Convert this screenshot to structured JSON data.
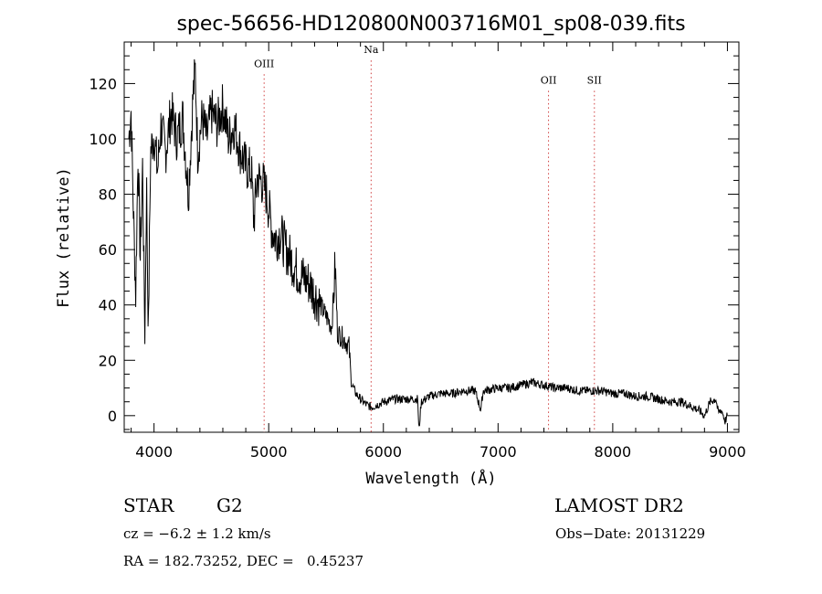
{
  "chart_data": {
    "type": "line",
    "title": "spec-56656-HD120800N003716M01_sp08-039.fits",
    "xlabel": "Wavelength (Å)",
    "ylabel": "Flux (relative)",
    "xlim": [
      3740,
      9100
    ],
    "ylim": [
      -6,
      135
    ],
    "xticks": [
      4000,
      5000,
      6000,
      7000,
      8000,
      9000
    ],
    "yticks": [
      0,
      20,
      40,
      60,
      80,
      100,
      120
    ],
    "grid": false,
    "series_color": "#000000",
    "line_marker_color": "#d04040",
    "line_markers": [
      {
        "label": "OIII",
        "x": 4960,
        "label_y": 126
      },
      {
        "label": "Na",
        "x": 5893,
        "label_y": 131
      },
      {
        "label": "OII",
        "x": 7440,
        "label_y": 120
      },
      {
        "label": "SII",
        "x": 7840,
        "label_y": 120
      }
    ],
    "series": [
      {
        "values": [
          [
            3780,
            100
          ],
          [
            3800,
            110
          ],
          [
            3820,
            75
          ],
          [
            3840,
            44
          ],
          [
            3860,
            95
          ],
          [
            3880,
            57
          ],
          [
            3900,
            90
          ],
          [
            3920,
            28
          ],
          [
            3935,
            85
          ],
          [
            3950,
            28
          ],
          [
            3970,
            95
          ],
          [
            4000,
            102
          ],
          [
            4030,
            88
          ],
          [
            4060,
            105
          ],
          [
            4100,
            95
          ],
          [
            4150,
            110
          ],
          [
            4200,
            100
          ],
          [
            4250,
            108
          ],
          [
            4300,
            80
          ],
          [
            4340,
            115
          ],
          [
            4360,
            125
          ],
          [
            4380,
            95
          ],
          [
            4420,
            108
          ],
          [
            4460,
            100
          ],
          [
            4500,
            110
          ],
          [
            4550,
            105
          ],
          [
            4600,
            112
          ],
          [
            4650,
            100
          ],
          [
            4700,
            105
          ],
          [
            4750,
            96
          ],
          [
            4800,
            90
          ],
          [
            4850,
            88
          ],
          [
            4870,
            70
          ],
          [
            4900,
            86
          ],
          [
            4950,
            84
          ],
          [
            4980,
            80
          ],
          [
            5000,
            75
          ],
          [
            5030,
            67
          ],
          [
            5060,
            64
          ],
          [
            5100,
            66
          ],
          [
            5150,
            60
          ],
          [
            5200,
            56
          ],
          [
            5250,
            52
          ],
          [
            5300,
            50
          ],
          [
            5350,
            48
          ],
          [
            5400,
            44
          ],
          [
            5450,
            40
          ],
          [
            5500,
            36
          ],
          [
            5550,
            32
          ],
          [
            5580,
            54
          ],
          [
            5600,
            30
          ],
          [
            5650,
            28
          ],
          [
            5700,
            25
          ],
          [
            5720,
            12
          ],
          [
            5760,
            8
          ],
          [
            5800,
            6
          ],
          [
            5850,
            4
          ],
          [
            5900,
            3
          ],
          [
            5950,
            4
          ],
          [
            6000,
            5
          ],
          [
            6100,
            6
          ],
          [
            6200,
            6
          ],
          [
            6300,
            6
          ],
          [
            6310,
            -6
          ],
          [
            6330,
            5
          ],
          [
            6400,
            7
          ],
          [
            6500,
            8
          ],
          [
            6600,
            8
          ],
          [
            6700,
            9
          ],
          [
            6800,
            9
          ],
          [
            6850,
            2
          ],
          [
            6870,
            9
          ],
          [
            7000,
            10
          ],
          [
            7100,
            10
          ],
          [
            7200,
            11
          ],
          [
            7300,
            12
          ],
          [
            7400,
            11
          ],
          [
            7500,
            10
          ],
          [
            7600,
            10
          ],
          [
            7700,
            9
          ],
          [
            7800,
            9
          ],
          [
            7900,
            9
          ],
          [
            8000,
            8
          ],
          [
            8100,
            8
          ],
          [
            8200,
            7
          ],
          [
            8300,
            7
          ],
          [
            8400,
            6
          ],
          [
            8500,
            5
          ],
          [
            8600,
            5
          ],
          [
            8700,
            3
          ],
          [
            8750,
            2
          ],
          [
            8800,
            0
          ],
          [
            8850,
            5
          ],
          [
            8900,
            6
          ],
          [
            8920,
            1
          ],
          [
            8950,
            2
          ],
          [
            8980,
            -2
          ],
          [
            9000,
            0
          ]
        ]
      }
    ]
  },
  "info": {
    "object_type": "STAR",
    "subclass": "G2",
    "survey": "LAMOST DR2",
    "redshift_line": "cz = −6.2 ± 1.2 km/s",
    "obs_date": "Obs−Date: 20131229",
    "coords": "RA = 182.73252, DEC =   0.45237"
  }
}
